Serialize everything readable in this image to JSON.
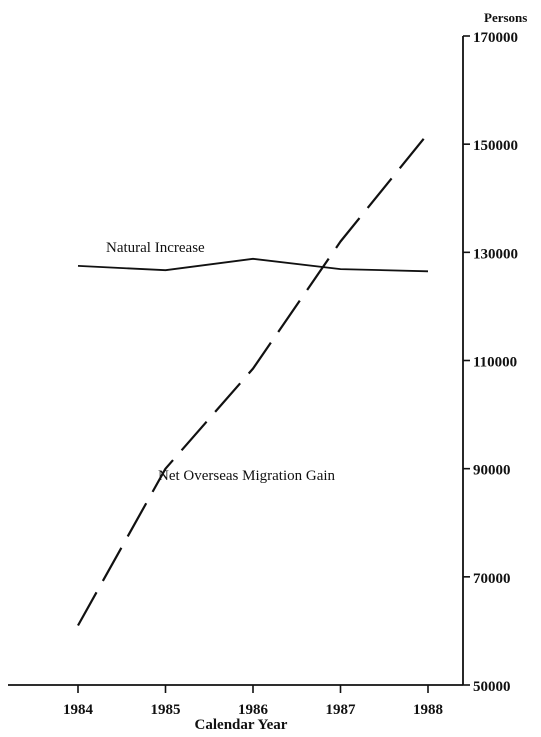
{
  "chart_data": {
    "type": "line",
    "x_title": "Calendar Year",
    "y_unit": "Persons",
    "x": [
      1984,
      1985,
      1986,
      1987,
      1988
    ],
    "xlim": [
      1983.2,
      1988.4
    ],
    "ylim": [
      50000,
      170000
    ],
    "y_ticks": [
      50000,
      70000,
      90000,
      110000,
      130000,
      150000,
      170000
    ],
    "y_axis_side": "right",
    "grid": false,
    "legend": "none",
    "series": [
      {
        "name": "Natural Increase",
        "style": "solid",
        "color": "#111111",
        "values": [
          127500,
          126700,
          128800,
          126900,
          126500
        ]
      },
      {
        "name": "Net Overseas Migration Gain",
        "style": "dashed",
        "color": "#111111",
        "values": [
          61000,
          90000,
          108500,
          132000,
          152000
        ]
      }
    ]
  }
}
